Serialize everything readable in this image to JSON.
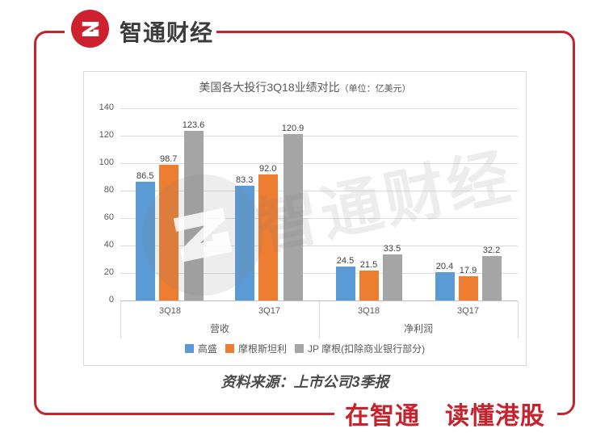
{
  "brand": {
    "name": "智通财经",
    "logo_glyph": "Z",
    "red": "#C5242E",
    "tagline": "在智通　读懂港股"
  },
  "watermark": {
    "text": "智通财经"
  },
  "footer": {
    "source": "资料来源：上市公司3季报"
  },
  "chart_data": {
    "type": "bar",
    "title": "美国各大投行3Q18业绩对比",
    "title_unit": "（单位：亿美元）",
    "group_labels": [
      "营收",
      "净利润"
    ],
    "categories": [
      "3Q18",
      "3Q17",
      "3Q18",
      "3Q17"
    ],
    "series": [
      {
        "name": "高盛",
        "color": "#5B9BD5",
        "values": [
          86.5,
          83.3,
          24.5,
          20.4
        ],
        "labels": [
          "86.5",
          "83.3",
          "24.5",
          "20.4"
        ]
      },
      {
        "name": "摩根斯坦利",
        "color": "#ED7D31",
        "values": [
          98.7,
          92.0,
          21.5,
          17.9
        ],
        "labels": [
          "98.7",
          "92.0",
          "21.5",
          "17.9"
        ]
      },
      {
        "name": "JP 摩根(扣除商业银行部分)",
        "color": "#A5A5A5",
        "values": [
          123.6,
          120.9,
          33.5,
          32.2
        ],
        "labels": [
          "123.6",
          "120.9",
          "33.5",
          "32.2"
        ]
      }
    ],
    "ylim": [
      0,
      140
    ],
    "yticks": [
      0,
      20,
      40,
      60,
      80,
      100,
      120,
      140
    ],
    "grid": true,
    "legend_position": "bottom"
  }
}
